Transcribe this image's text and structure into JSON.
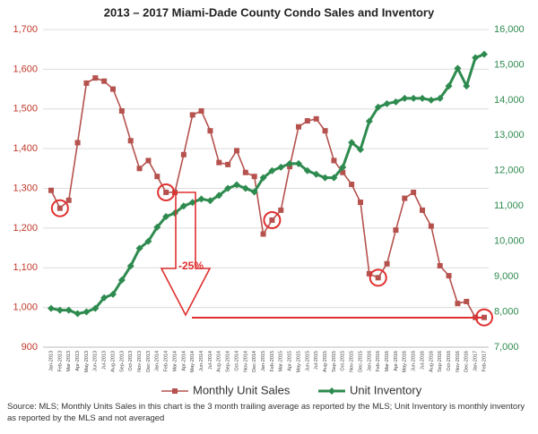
{
  "chart_data": {
    "type": "line",
    "title": "2013 – 2017 Miami-Dade County Condo Sales and Inventory",
    "source": "Source: MLS; Monthly Units Sales in this chart is the 3 month trailing average as reported by the MLS; Unit Inventory is monthly inventory as reported by the MLS and not averaged",
    "annotations": [
      "-25%"
    ],
    "categories": [
      "Jan-2013",
      "Feb-2013",
      "Mar-2013",
      "Apr-2013",
      "May-2013",
      "Jun-2013",
      "Jul-2013",
      "Aug-2013",
      "Sep-2013",
      "Oct-2013",
      "Nov-2013",
      "Dec-2013",
      "Jan-2014",
      "Feb-2014",
      "Mar-2014",
      "Apr-2014",
      "May-2014",
      "Jun-2014",
      "Jul-2014",
      "Aug-2014",
      "Sep-2014",
      "Oct-2014",
      "Nov-2014",
      "Dec-2014",
      "Jan-2015",
      "Feb-2015",
      "Mar-2015",
      "Apr-2015",
      "May-2015",
      "Jun-2015",
      "Jul-2015",
      "Aug-2015",
      "Sep-2015",
      "Oct-2015",
      "Nov-2015",
      "Dec-2015",
      "Jan-2016",
      "Feb-2016",
      "Mar-2016",
      "Apr-2016",
      "May-2016",
      "Jun-2016",
      "Jul-2016",
      "Aug-2016",
      "Sep-2016",
      "Oct-2016",
      "Nov-2016",
      "Dec-2016",
      "Jan-2017",
      "Feb-2017"
    ],
    "series": [
      {
        "name": "Monthly Unit Sales",
        "color": "#b5524e",
        "marker": "square",
        "values": [
          1295,
          1250,
          1270,
          1415,
          1565,
          1578,
          1570,
          1550,
          1495,
          1420,
          1350,
          1370,
          1330,
          1290,
          1290,
          1385,
          1485,
          1495,
          1445,
          1365,
          1360,
          1395,
          1340,
          1330,
          1185,
          1220,
          1245,
          1355,
          1455,
          1470,
          1475,
          1445,
          1370,
          1340,
          1310,
          1265,
          1085,
          1075,
          1110,
          1195,
          1275,
          1290,
          1245,
          1205,
          1105,
          1080,
          1010,
          1015,
          975,
          975
        ]
      },
      {
        "name": "Unit Inventory",
        "color": "#2e8b4f",
        "marker": "diamond",
        "axis": "y2",
        "values": [
          8100,
          8050,
          8050,
          7950,
          8000,
          8100,
          8400,
          8500,
          8900,
          9300,
          9800,
          10000,
          10400,
          10700,
          10800,
          11000,
          11100,
          11200,
          11150,
          11300,
          11500,
          11600,
          11500,
          11400,
          11800,
          12000,
          12100,
          12200,
          12200,
          12000,
          11900,
          11800,
          11800,
          12100,
          12800,
          12600,
          13400,
          13800,
          13900,
          13950,
          14050,
          14050,
          14050,
          14000,
          14050,
          14400,
          14900,
          14400,
          15200,
          15300
        ]
      }
    ],
    "ylim": [
      900,
      1700
    ],
    "yticks": [
      {
        "value": 900,
        "label": "900"
      },
      {
        "value": 1000,
        "label": "1,000"
      },
      {
        "value": 1100,
        "label": "1,100"
      },
      {
        "value": 1200,
        "label": "1,200"
      },
      {
        "value": 1300,
        "label": "1,300"
      },
      {
        "value": 1400,
        "label": "1,400"
      },
      {
        "value": 1500,
        "label": "1,500"
      },
      {
        "value": 1600,
        "label": "1,600"
      },
      {
        "value": 1700,
        "label": "1,700"
      }
    ],
    "y2lim": [
      7000,
      16000
    ],
    "y2ticks": [
      {
        "value": 7000,
        "label": "7,000"
      },
      {
        "value": 8000,
        "label": "8,000"
      },
      {
        "value": 9000,
        "label": "9,000"
      },
      {
        "value": 10000,
        "label": "10,000"
      },
      {
        "value": 11000,
        "label": "11,000"
      },
      {
        "value": 12000,
        "label": "12,000"
      },
      {
        "value": 13000,
        "label": "13,000"
      },
      {
        "value": 14000,
        "label": "14,000"
      },
      {
        "value": 15000,
        "label": "15,000"
      },
      {
        "value": 16000,
        "label": "16,000"
      }
    ],
    "grid": true,
    "legend": "bottom"
  }
}
